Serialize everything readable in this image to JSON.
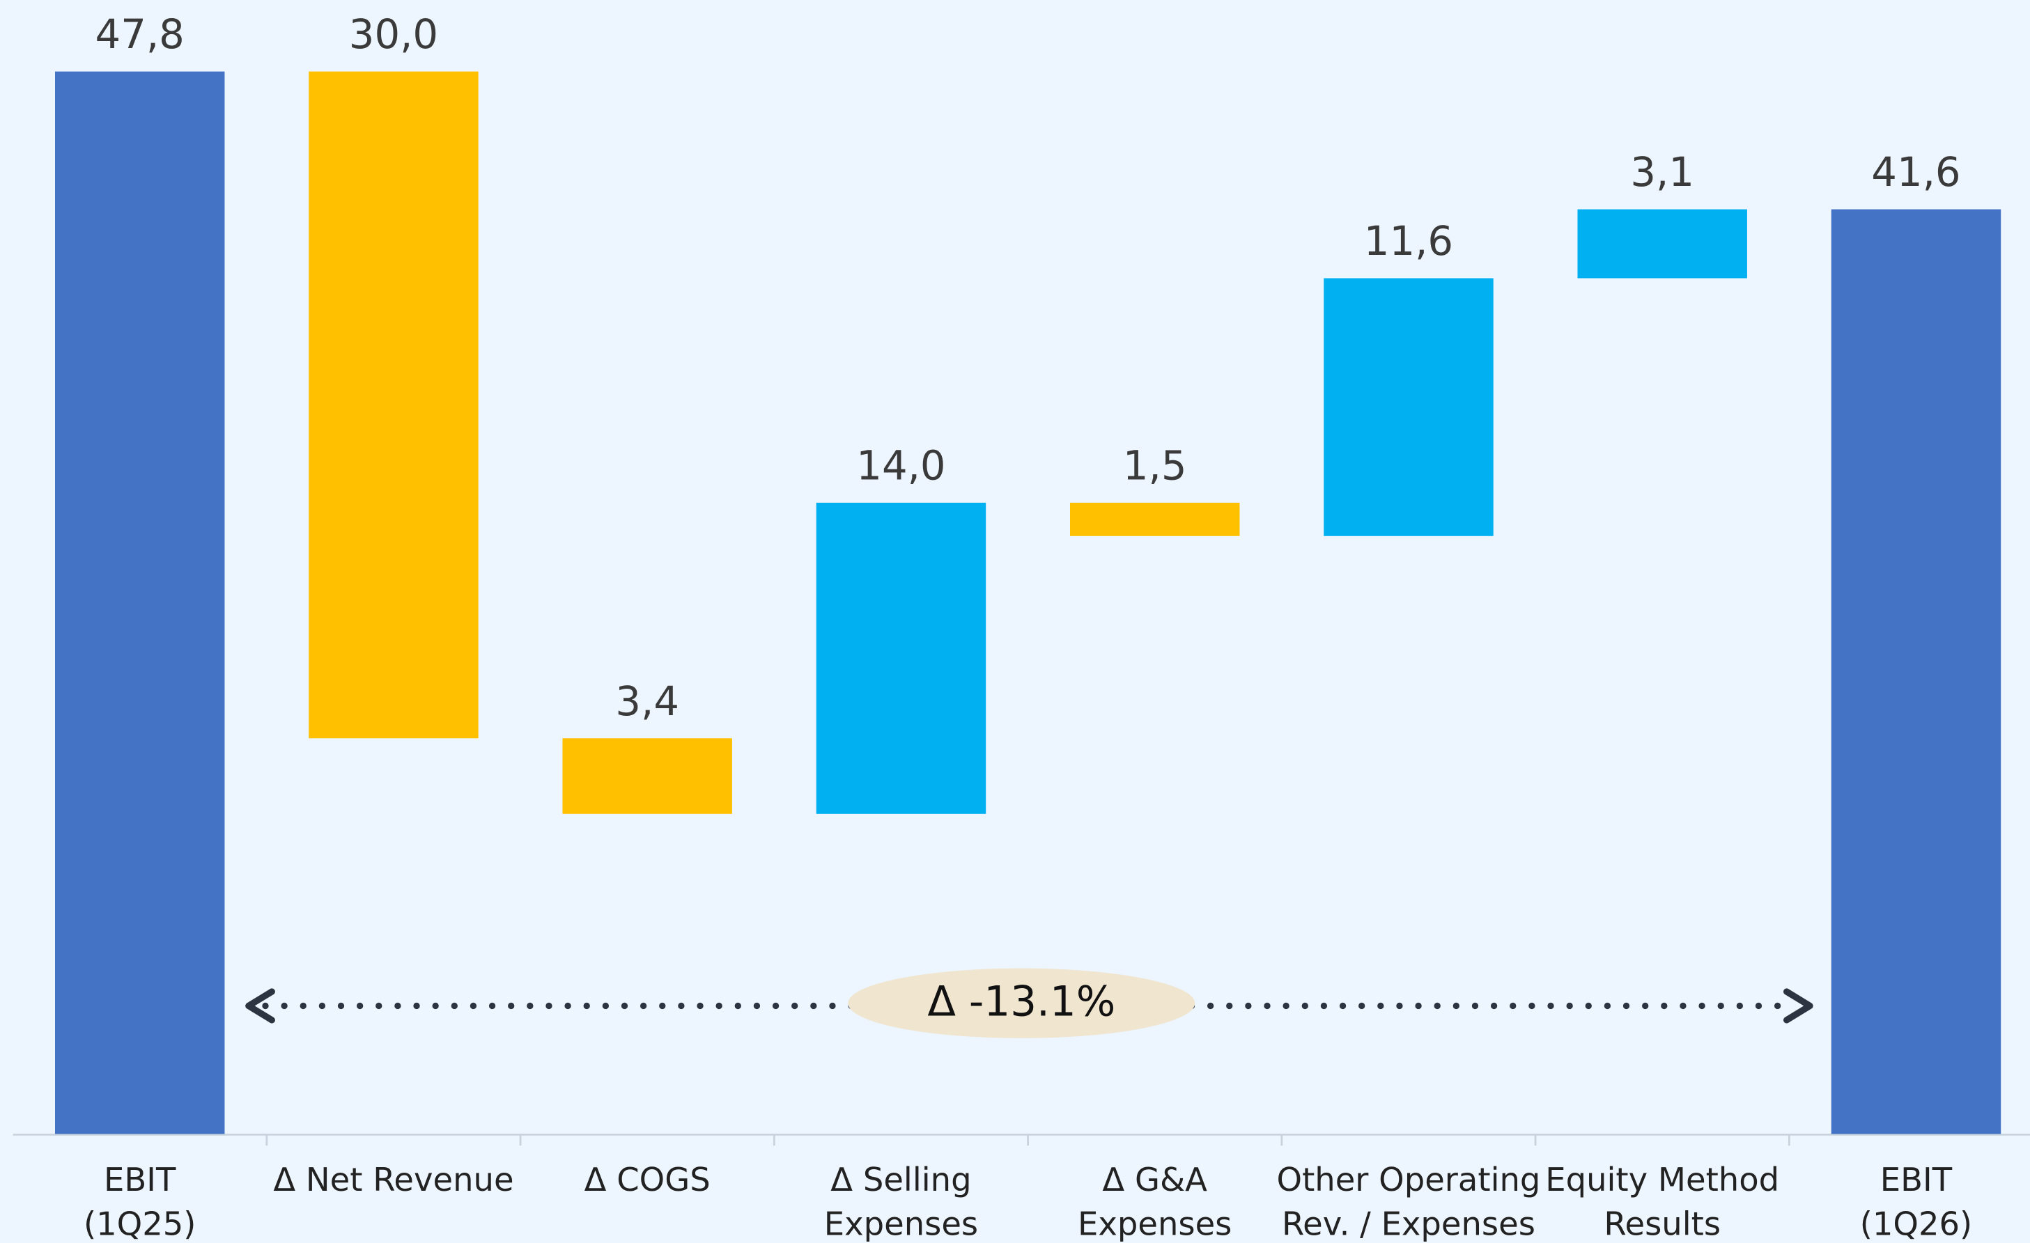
{
  "chart_data": {
    "type": "waterfall",
    "categories": [
      [
        "EBIT",
        "(1Q25)"
      ],
      [
        "Δ Net Revenue"
      ],
      [
        "Δ COGS"
      ],
      [
        "Δ Selling",
        "Expenses"
      ],
      [
        "Δ G&A",
        "Expenses"
      ],
      [
        "Other Operating",
        "Rev. / Expenses"
      ],
      [
        "Equity Method",
        "Results"
      ],
      [
        "EBIT",
        "(1Q26)"
      ]
    ],
    "values": [
      47.8,
      -30.0,
      -3.4,
      14.0,
      -1.5,
      11.6,
      3.1,
      41.6
    ],
    "value_labels": [
      "47,8",
      "30,0",
      "3,4",
      "14,0",
      "1,5",
      "11,6",
      "3,1",
      "41,6"
    ],
    "totals": [
      true,
      false,
      false,
      false,
      false,
      false,
      false,
      true
    ],
    "colors": {
      "total": "#4472c4",
      "increase": "#00b0f0",
      "decrease": "#ffc000"
    },
    "annotation": "Δ -13.1%"
  }
}
